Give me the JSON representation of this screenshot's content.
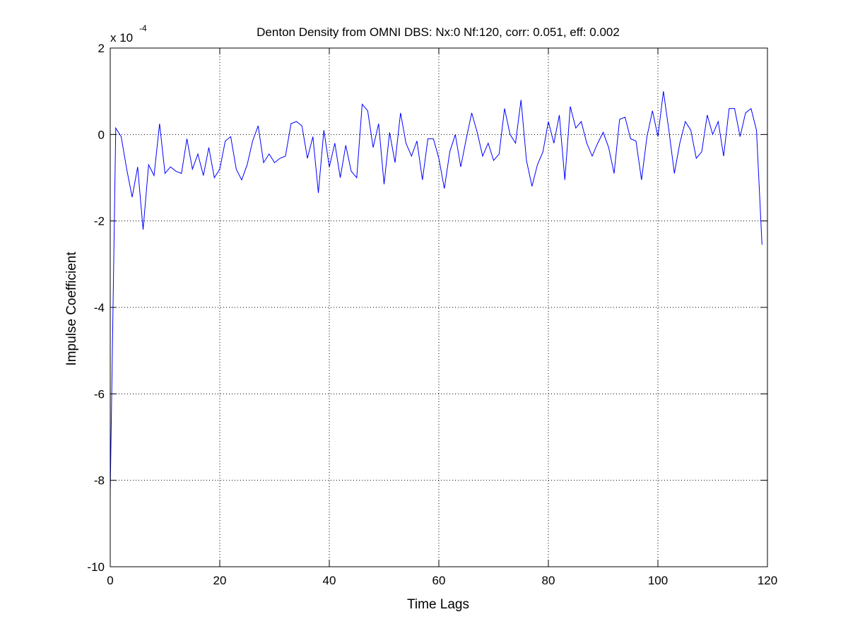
{
  "chart_data": {
    "type": "line",
    "title": "Denton Density from OMNI DBS: Nx:0 Nf:120, corr: 0.051, eff: 0.002",
    "xlabel": "Time Lags",
    "ylabel": "Impulse Coefficient",
    "y_exponent_label": "x 10",
    "y_exponent_power": "-4",
    "xlim": [
      0,
      120
    ],
    "ylim": [
      -10,
      2
    ],
    "xticks": [
      0,
      20,
      40,
      60,
      80,
      100,
      120
    ],
    "yticks": [
      -10,
      -8,
      -6,
      -4,
      -2,
      0,
      2
    ],
    "grid": true,
    "line_color": "#0000ff",
    "series": [
      {
        "x": [
          0,
          1,
          2,
          3,
          4,
          5,
          6,
          7,
          8,
          9,
          10,
          11,
          12,
          13,
          14,
          15,
          16,
          17,
          18,
          19,
          20,
          21,
          22,
          23,
          24,
          25,
          26,
          27,
          28,
          29,
          30,
          31,
          32,
          33,
          34,
          35,
          36,
          37,
          38,
          39,
          40,
          41,
          42,
          43,
          44,
          45,
          46,
          47,
          48,
          49,
          50,
          51,
          52,
          53,
          54,
          55,
          56,
          57,
          58,
          59,
          60,
          61,
          62,
          63,
          64,
          65,
          66,
          67,
          68,
          69,
          70,
          71,
          72,
          73,
          74,
          75,
          76,
          77,
          78,
          79,
          80,
          81,
          82,
          83,
          84,
          85,
          86,
          87,
          88,
          89,
          90,
          91,
          92,
          93,
          94,
          95,
          96,
          97,
          98,
          99,
          100,
          101,
          102,
          103,
          104,
          105,
          106,
          107,
          108,
          109,
          110,
          111,
          112,
          113,
          114,
          115,
          116,
          117,
          118,
          119
        ],
        "y": [
          -8.25,
          0.15,
          -0.05,
          -0.8,
          -1.45,
          -0.75,
          -2.2,
          -0.7,
          -0.95,
          0.25,
          -0.9,
          -0.75,
          -0.85,
          -0.9,
          -0.1,
          -0.8,
          -0.45,
          -0.95,
          -0.3,
          -1.0,
          -0.8,
          -0.15,
          -0.05,
          -0.8,
          -1.05,
          -0.7,
          -0.15,
          0.2,
          -0.65,
          -0.45,
          -0.65,
          -0.55,
          -0.5,
          0.25,
          0.3,
          0.2,
          -0.55,
          -0.05,
          -1.35,
          0.1,
          -0.75,
          -0.2,
          -1.0,
          -0.25,
          -0.85,
          -1.0,
          0.7,
          0.55,
          -0.3,
          0.25,
          -1.15,
          0.05,
          -0.65,
          0.5,
          -0.2,
          -0.5,
          -0.15,
          -1.05,
          -0.1,
          -0.1,
          -0.55,
          -1.25,
          -0.4,
          0.0,
          -0.75,
          -0.1,
          0.5,
          0.05,
          -0.5,
          -0.2,
          -0.6,
          -0.45,
          0.6,
          0.0,
          -0.2,
          0.8,
          -0.6,
          -1.2,
          -0.7,
          -0.4,
          0.3,
          -0.2,
          0.45,
          -1.05,
          0.65,
          0.15,
          0.3,
          -0.2,
          -0.5,
          -0.2,
          0.05,
          -0.3,
          -0.9,
          0.35,
          0.4,
          -0.1,
          -0.15,
          -1.05,
          -0.05,
          0.55,
          -0.05,
          1.0,
          0.1,
          -0.9,
          -0.2,
          0.3,
          0.1,
          -0.55,
          -0.4,
          0.45,
          0.0,
          0.3,
          -0.5,
          0.6,
          0.6,
          -0.05,
          0.5,
          0.6,
          0.1,
          -2.55
        ]
      }
    ]
  }
}
